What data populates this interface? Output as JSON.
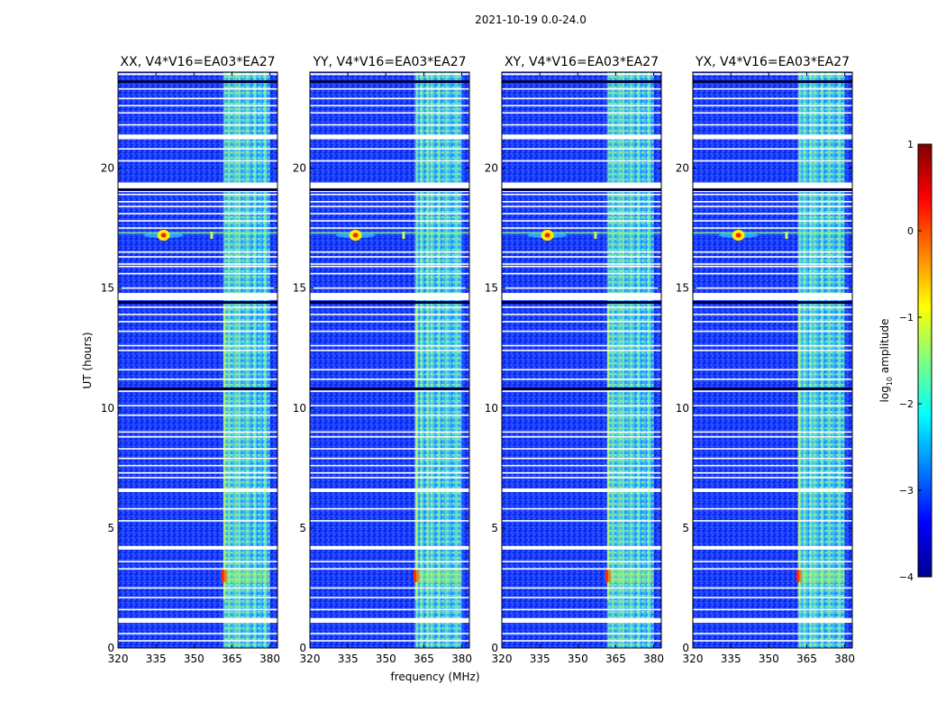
{
  "figure": {
    "suptitle": "2021-10-19 0.0-24.0",
    "ylabel": "UT (hours)",
    "xlabel": "frequency (MHz)",
    "colorbar_label": "log",
    "colorbar_label_sub": "10",
    "colorbar_label_rest": " amplitude"
  },
  "chart_data": {
    "type": "heatmap",
    "xlim": [
      320,
      383
    ],
    "ylim": [
      0,
      24
    ],
    "xticks": [
      320,
      335,
      350,
      365,
      380
    ],
    "yticks": [
      0,
      5,
      10,
      15,
      20
    ],
    "colorbar": {
      "range": [
        -4,
        1
      ],
      "ticks": [
        "1",
        "0",
        "−1",
        "−2",
        "−3",
        "−4"
      ],
      "tick_values": [
        1,
        0,
        -1,
        -2,
        -3,
        -4
      ]
    },
    "panels": [
      {
        "title": "XX, V4*V16=EA03*EA27",
        "id": "xx"
      },
      {
        "title": "YY, V4*V16=EA03*EA27",
        "id": "yy"
      },
      {
        "title": "XY, V4*V16=EA03*EA27",
        "id": "xy"
      },
      {
        "title": "YX, V4*V16=EA03*EA27",
        "id": "yx"
      }
    ],
    "features": {
      "rfi_band_mhz": [
        360,
        380
      ],
      "rfi_band_edge_mhz": 360,
      "rfi_band_noisy_columns_mhz": [
        362,
        364,
        366.5,
        368,
        371,
        374,
        378
      ],
      "rfi_spot_mhz": [
        338,
        338
      ],
      "rfi_spot_ut": 17.2,
      "rfi_line_ut": 17.3,
      "rfi_small_spots_mhz": [
        357,
        338
      ],
      "burst_ut": 3.0,
      "flagged_bands_ut": [
        [
          1.05,
          1.25
        ],
        [
          4.1,
          4.25
        ],
        [
          6.5,
          6.65
        ],
        [
          14.5,
          14.8
        ],
        [
          19.0,
          19.4
        ],
        [
          21.2,
          21.4
        ],
        [
          24,
          23.95
        ]
      ],
      "flagged_lines_ut": [
        0.3,
        0.6,
        1.6,
        2.1,
        2.5,
        3.3,
        3.6,
        5.3,
        5.8,
        7.1,
        7.3,
        7.6,
        7.9,
        8.3,
        8.8,
        9.0,
        9.7,
        10.1,
        10.7,
        11.2,
        11.6,
        12.4,
        12.6,
        13.2,
        13.6,
        13.9,
        14.2,
        15.0,
        15.6,
        15.9,
        16.0,
        16.3,
        16.5,
        17.5,
        17.8,
        18.1,
        18.4,
        18.6,
        18.9,
        20.3,
        20.8,
        21.8,
        22.3,
        22.6,
        22.9,
        23.3
      ],
      "dark_lines_ut": [
        10.8,
        14.4,
        19.1,
        23.6
      ]
    }
  }
}
